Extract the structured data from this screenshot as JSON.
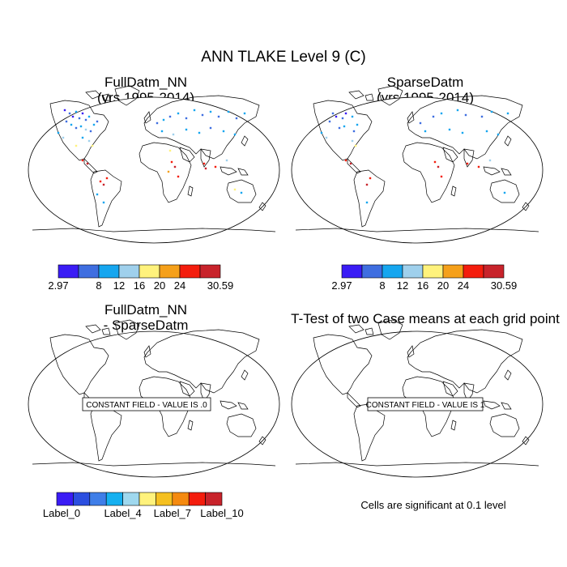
{
  "title": "ANN TLAKE Level 9 (C)",
  "panels": [
    {
      "id": "p1",
      "title_line1": "FullDatm_NN",
      "title_line2": "(yrs 1995-2014)"
    },
    {
      "id": "p2",
      "title_line1": "SparseDatm",
      "title_line2": "(yrs 1995-2014)"
    },
    {
      "id": "p3",
      "title_line1": "FullDatm_NN",
      "title_line2": "- SparseDatm",
      "message": "CONSTANT FIELD - VALUE IS .0"
    },
    {
      "id": "p4",
      "title_line1": "T-Test of two Case means at each grid point",
      "message": "CONSTANT FIELD - VALUE IS 1"
    }
  ],
  "colorbar_top": {
    "colors": [
      "#3a1cf5",
      "#3f6ee0",
      "#16a6ef",
      "#9fd0ec",
      "#fff27c",
      "#f5a01a",
      "#f41d0d",
      "#c8232b"
    ],
    "labels": [
      "2.97",
      "8",
      "12",
      "16",
      "20",
      "24",
      "30.59"
    ]
  },
  "colorbar_bottom": {
    "colors": [
      "#3a1cf5",
      "#2c4fe0",
      "#3f7ee8",
      "#16b0f0",
      "#9fd8ee",
      "#fff27c",
      "#f5c020",
      "#f58a10",
      "#f41d0d",
      "#c8232b"
    ],
    "labels": [
      "Label_0",
      "Label_4",
      "Label_7",
      "Label_10"
    ]
  },
  "significance_note": "Cells are significant at 0.1 level",
  "chart_data": {
    "type": "map",
    "projection": "Robinson",
    "variable": "ANN TLAKE Level 9 (C)",
    "data_range": [
      2.97,
      30.59
    ],
    "contour_levels": [
      8,
      12,
      16,
      20,
      24
    ],
    "panels": [
      {
        "name": "FullDatm_NN",
        "years": "1995-2014",
        "min": 2.97,
        "max": 30.59
      },
      {
        "name": "SparseDatm",
        "years": "1995-2014",
        "min": 2.97,
        "max": 30.59
      },
      {
        "name": "FullDatm_NN - SparseDatm",
        "constant_value": 0.0
      },
      {
        "name": "T-Test of two Case means at each grid point",
        "constant_value": 1,
        "significance_level": 0.1
      }
    ]
  }
}
